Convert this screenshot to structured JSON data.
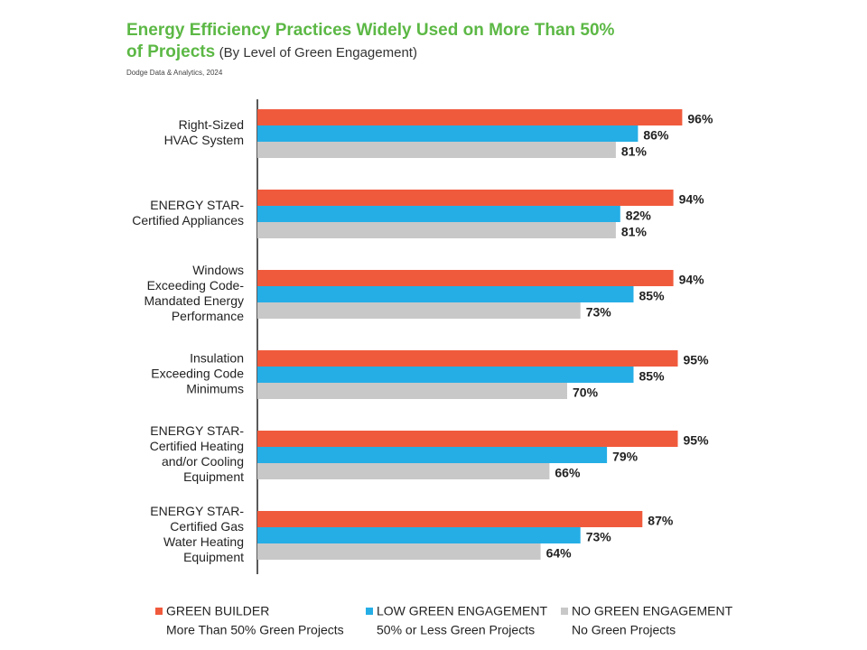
{
  "chart_data": {
    "type": "hbar",
    "title": "Energy Efficiency Practices Widely Used on More Than 50% of Projects",
    "subtitle": "(By Level of Green Engagement)",
    "source": "Dodge Data & Analytics, 2024",
    "categories": [
      [
        "Right-Sized",
        "HVAC System"
      ],
      [
        "ENERGY STAR-",
        "Certified Appliances"
      ],
      [
        "Windows",
        "Exceeding Code-",
        "Mandated Energy",
        "Performance"
      ],
      [
        "Insulation",
        "Exceeding Code",
        "Minimums"
      ],
      [
        "ENERGY STAR-",
        "Certified Heating",
        "and/or Cooling",
        "Equipment"
      ],
      [
        "ENERGY STAR-",
        "Certified Gas",
        "Water Heating",
        "Equipment"
      ]
    ],
    "series": [
      {
        "name": "GREEN BUILDER",
        "description": "More Than 50% Green Projects",
        "color": "#f05a3c",
        "values": [
          96,
          94,
          94,
          95,
          95,
          87
        ],
        "value_labels": [
          "96%",
          "94%",
          "94%",
          "95%",
          "95%",
          "87%"
        ]
      },
      {
        "name": "LOW GREEN ENGAGEMENT",
        "description": "50% or Less Green Projects",
        "color": "#25aee6",
        "values": [
          86,
          82,
          85,
          85,
          79,
          73
        ],
        "value_labels": [
          "86%",
          "82%",
          "85%",
          "85%",
          "79%",
          "73%"
        ]
      },
      {
        "name": "NO GREEN ENGAGEMENT",
        "description": "No Green Projects",
        "color": "#c8c8c8",
        "values": [
          81,
          81,
          73,
          70,
          66,
          64
        ],
        "value_labels": [
          "81%",
          "81%",
          "73%",
          "70%",
          "66%",
          "64%"
        ]
      }
    ],
    "xlim": [
      0,
      100
    ]
  }
}
